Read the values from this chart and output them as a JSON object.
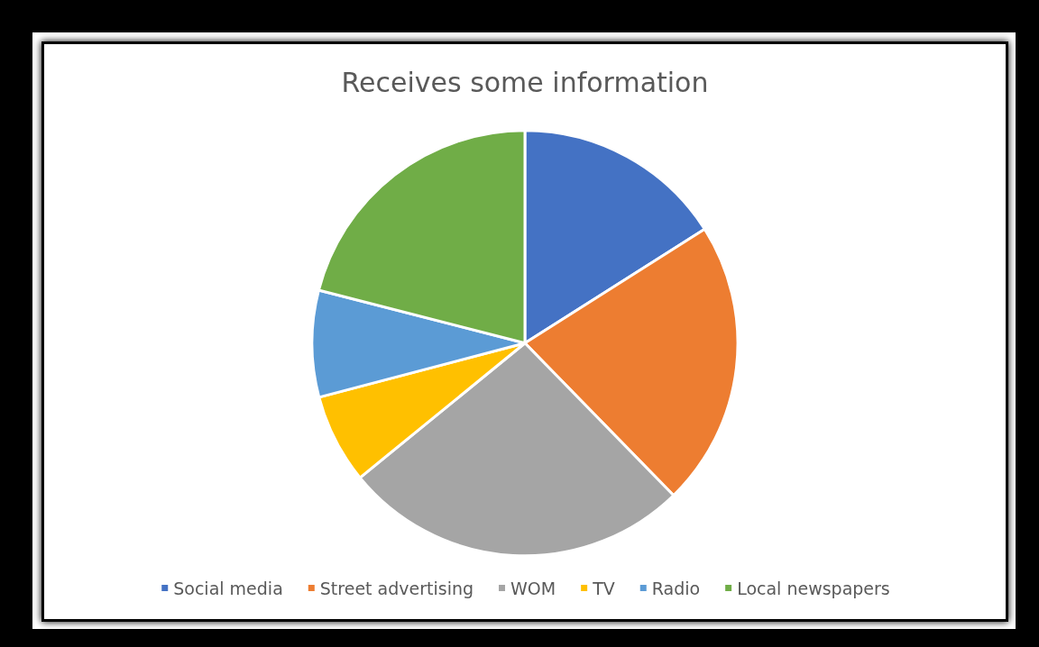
{
  "chart_data": {
    "type": "pie",
    "title": "Receives some information",
    "categories": [
      "Social media",
      "Street advertising",
      "WOM",
      "TV",
      "Radio",
      "Local newspapers"
    ],
    "values": [
      16,
      21.7,
      26.4,
      6.8,
      8.1,
      21
    ],
    "colors": [
      "#4472c4",
      "#ed7d31",
      "#a5a5a5",
      "#ffc000",
      "#5b9bd5",
      "#70ad47"
    ],
    "legend": "bottom"
  }
}
